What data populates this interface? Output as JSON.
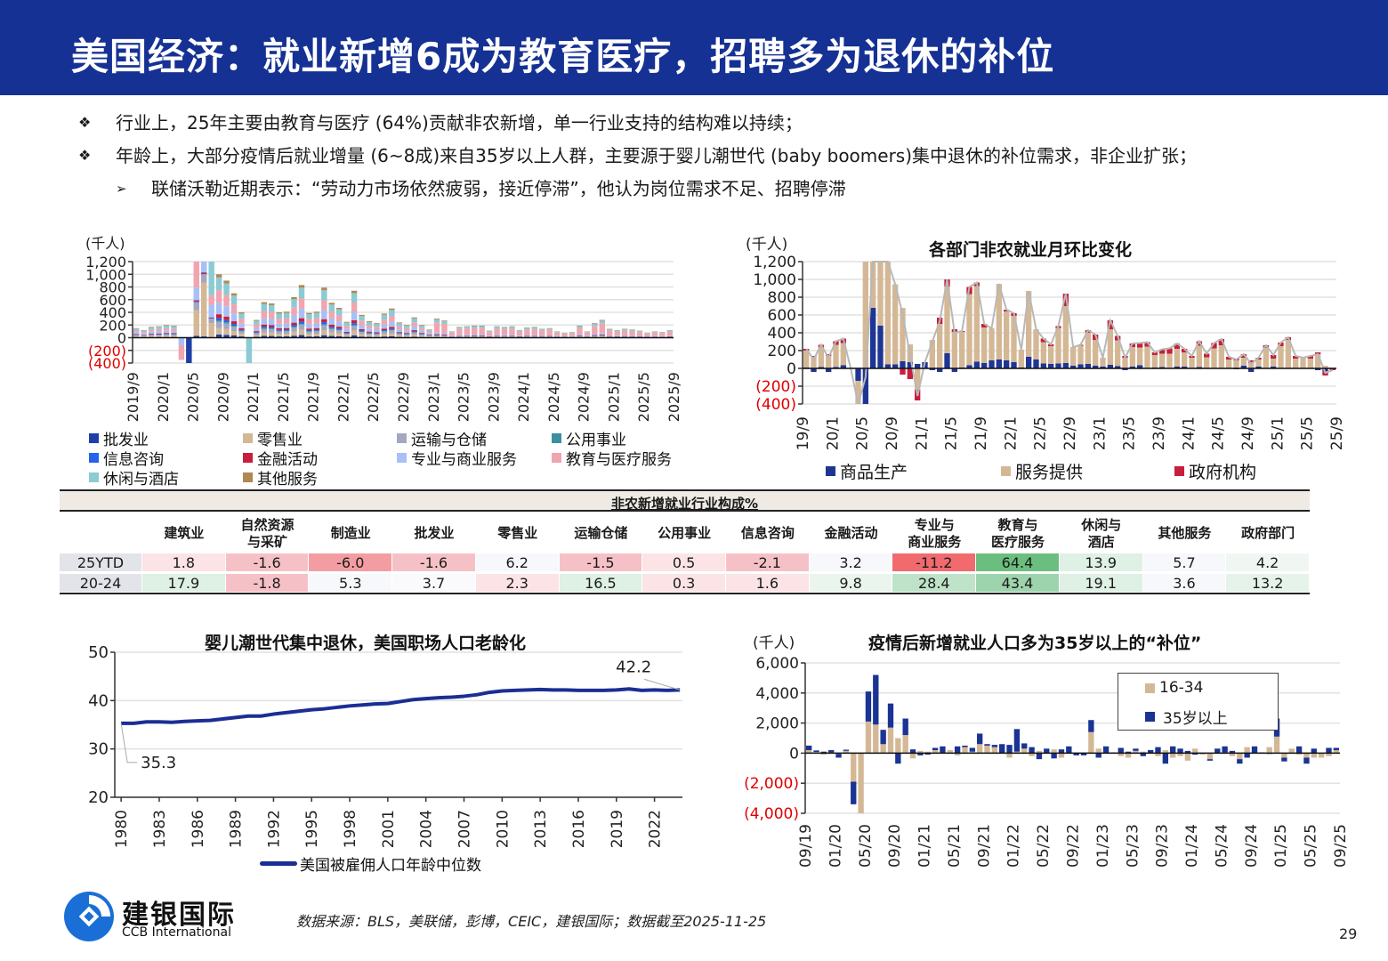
{
  "header": {
    "title": "美国经济：就业新增6成为教育医疗，招聘多为退休的补位"
  },
  "bullets": [
    {
      "marker": "❖",
      "text": "行业上，25年主要由教育与医疗 (64%)贡献非农新增，单一行业支持的结构难以持续；"
    },
    {
      "marker": "❖",
      "text": "年龄上，大部分疫情后就业增量 (6~8成)来自35岁以上人群，主要源于婴儿潮世代 (baby boomers)集中退休的补位需求，非企业扩张；"
    },
    {
      "marker": "➢",
      "text": "联储沃勒近期表示：“劳动力市场依然疲弱，接近停滞”，他认为岗位需求不足、招聘停滞"
    }
  ],
  "chart_data": [
    {
      "id": "sector_stacked",
      "type": "bar",
      "stacked": true,
      "title": "",
      "unit_label": "(千人)",
      "ylim": [
        -400,
        1200
      ],
      "yticks": [
        -400,
        -200,
        0,
        200,
        400,
        600,
        800,
        1000,
        1200
      ],
      "ytick_labels": [
        "(400)",
        "(200)",
        "0",
        "200",
        "400",
        "600",
        "800",
        "1,000",
        "1,200"
      ],
      "xtick_labels": [
        "2019/9",
        "2020/1",
        "2020/5",
        "2020/9",
        "2021/1",
        "2021/5",
        "2021/9",
        "2022/1",
        "2022/5",
        "2022/9",
        "2023/1",
        "2023/5",
        "2023/9",
        "2024/1",
        "2024/5",
        "2024/9",
        "2025/1",
        "2025/5",
        "2025/9"
      ],
      "grid": true,
      "legend_position": "bottom",
      "series_names": [
        "批发业",
        "零售业",
        "运输与仓储",
        "公用事业",
        "信息咨询",
        "金融活动",
        "专业与商业服务",
        "教育与医疗服务",
        "休闲与酒店",
        "其他服务"
      ],
      "series_colors": [
        "#1f3fa8",
        "#d4b896",
        "#a3a8c0",
        "#3a8fa0",
        "#2563eb",
        "#c81e3c",
        "#a8c0f5",
        "#f0a5b0",
        "#8ccad4",
        "#b08850"
      ],
      "totals_approx": [
        150,
        120,
        170,
        180,
        200,
        190,
        -20,
        -850,
        2700,
        4800,
        1400,
        1000,
        900,
        700,
        400,
        220,
        280,
        560,
        540,
        400,
        410,
        640,
        830,
        390,
        410,
        790,
        550,
        470,
        250,
        740,
        360,
        260,
        230,
        380,
        460,
        240,
        200,
        320,
        200,
        130,
        300,
        270,
        100,
        170,
        180,
        190,
        190,
        110,
        180,
        170,
        180,
        120,
        160,
        170,
        140,
        150,
        100,
        80,
        90,
        190,
        100,
        230,
        280,
        140,
        120,
        140,
        130,
        110,
        80,
        100,
        90,
        120
      ],
      "unit": "千人"
    },
    {
      "id": "sector_monthly",
      "type": "bar",
      "stacked": true,
      "title": "各部门非农就业月环比变化",
      "unit_label": "(千人)",
      "ylim": [
        -400,
        1200
      ],
      "yticks": [
        -400,
        -200,
        0,
        200,
        400,
        600,
        800,
        1000,
        1200
      ],
      "ytick_labels": [
        "(400)",
        "(200)",
        "0",
        "200",
        "400",
        "600",
        "800",
        "1,000",
        "1,200"
      ],
      "xtick_labels": [
        "19/9",
        "20/1",
        "20/5",
        "20/9",
        "21/1",
        "21/5",
        "21/9",
        "22/1",
        "22/5",
        "22/9",
        "23/1",
        "23/5",
        "23/9",
        "24/1",
        "24/5",
        "24/9",
        "25/1",
        "25/5",
        "25/9"
      ],
      "grid": true,
      "legend_position": "bottom",
      "series": [
        {
          "name": "商品生产",
          "color": "#1f3594",
          "values": [
            10,
            -40,
            15,
            -40,
            15,
            35,
            0,
            -140,
            -700,
            680,
            480,
            45,
            45,
            80,
            70,
            50,
            70,
            -20,
            -40,
            170,
            -40,
            10,
            35,
            75,
            60,
            90,
            100,
            90,
            70,
            10,
            130,
            100,
            55,
            50,
            55,
            60,
            30,
            45,
            50,
            30,
            20,
            40,
            25,
            -20,
            20,
            35,
            5,
            10,
            15,
            5,
            20,
            20,
            0,
            15,
            5,
            5,
            0,
            0,
            -10,
            30,
            -40,
            20,
            0,
            20,
            0,
            0,
            0,
            0,
            0,
            -20,
            -30,
            0
          ]
        },
        {
          "name": "服务提供",
          "color": "#d4b896",
          "values": [
            190,
            130,
            220,
            140,
            250,
            250,
            0,
            -700,
            1500,
            2100,
            1800,
            1800,
            900,
            600,
            200,
            -240,
            0,
            320,
            500,
            750,
            410,
            400,
            800,
            850,
            400,
            360,
            850,
            550,
            520,
            200,
            740,
            340,
            240,
            200,
            400,
            640,
            210,
            210,
            350,
            290,
            100,
            400,
            290,
            120,
            220,
            200,
            240,
            140,
            150,
            160,
            200,
            160,
            120,
            240,
            120,
            220,
            260,
            100,
            90,
            90,
            60,
            80,
            230,
            90,
            250,
            320,
            110,
            120,
            110,
            160,
            30,
            0,
            80,
            20,
            120
          ]
        },
        {
          "name": "政府机构",
          "color": "#c81e3c",
          "values": [
            20,
            10,
            30,
            20,
            40,
            50,
            0,
            -100,
            -900,
            0,
            0,
            0,
            0,
            -70,
            -120,
            -120,
            0,
            0,
            70,
            80,
            30,
            10,
            80,
            40,
            40,
            0,
            0,
            20,
            30,
            0,
            0,
            0,
            40,
            20,
            20,
            140,
            0,
            10,
            30,
            60,
            0,
            100,
            50,
            20,
            40,
            50,
            50,
            30,
            50,
            60,
            60,
            40,
            20,
            50,
            40,
            60,
            70,
            30,
            20,
            40,
            30,
            20,
            30,
            40,
            40,
            30,
            30,
            0,
            30,
            20,
            -50,
            -20,
            20,
            -30,
            20
          ]
        }
      ],
      "unit": "千人"
    },
    {
      "id": "median_age",
      "type": "line",
      "title": "婴儿潮世代集中退休，美国职场人口老龄化",
      "ylim": [
        20,
        50
      ],
      "yticks": [
        20,
        30,
        40,
        50
      ],
      "xtick_labels": [
        "1980",
        "1983",
        "1986",
        "1989",
        "1992",
        "1995",
        "1998",
        "2001",
        "2004",
        "2007",
        "2010",
        "2013",
        "2016",
        "2019",
        "2022"
      ],
      "grid": true,
      "legend_position": "bottom",
      "series": [
        {
          "name": "美国被雇佣人口年龄中位数",
          "color": "#1a2e94",
          "x": [
            1980,
            1981,
            1982,
            1983,
            1984,
            1985,
            1986,
            1987,
            1988,
            1989,
            1990,
            1991,
            1992,
            1993,
            1994,
            1995,
            1996,
            1997,
            1998,
            1999,
            2000,
            2001,
            2002,
            2003,
            2004,
            2005,
            2006,
            2007,
            2008,
            2009,
            2010,
            2011,
            2012,
            2013,
            2014,
            2015,
            2016,
            2017,
            2018,
            2019,
            2020,
            2021,
            2022,
            2023,
            2024
          ],
          "values": [
            35.3,
            35.3,
            35.6,
            35.6,
            35.5,
            35.7,
            35.8,
            35.9,
            36.2,
            36.5,
            36.8,
            36.8,
            37.2,
            37.5,
            37.8,
            38.1,
            38.3,
            38.6,
            38.9,
            39.1,
            39.3,
            39.4,
            39.8,
            40.2,
            40.4,
            40.6,
            40.7,
            40.9,
            41.2,
            41.7,
            42.0,
            42.1,
            42.2,
            42.3,
            42.2,
            42.2,
            42.1,
            42.1,
            42.1,
            42.2,
            42.4,
            42.1,
            42.2,
            42.1,
            42.2
          ]
        }
      ],
      "annotations": [
        {
          "label": "35.3",
          "x": 1980,
          "y": 35.3
        },
        {
          "label": "42.2",
          "x": 2024,
          "y": 42.2
        }
      ]
    },
    {
      "id": "age_groups",
      "type": "bar",
      "stacked": true,
      "title": "疫情后新增就业人口多为35岁以上的“补位”",
      "unit_label": "(千人)",
      "ylim": [
        -4000,
        6000
      ],
      "yticks": [
        -4000,
        -2000,
        0,
        2000,
        4000,
        6000
      ],
      "ytick_labels": [
        "(4,000)",
        "(2,000)",
        "0",
        "2,000",
        "4,000",
        "6,000"
      ],
      "xtick_labels": [
        "09/19",
        "01/20",
        "05/20",
        "09/20",
        "01/21",
        "05/21",
        "09/21",
        "01/22",
        "05/22",
        "09/22",
        "01/23",
        "05/23",
        "09/23",
        "01/24",
        "05/24",
        "09/24",
        "01/25",
        "05/25",
        "09/25"
      ],
      "grid": true,
      "legend_position": "inside-top-right",
      "series": [
        {
          "name": "16-34",
          "color": "#d4b896",
          "values": [
            200,
            80,
            -100,
            50,
            -50,
            150,
            -1900,
            -4100,
            2100,
            1900,
            600,
            1700,
            1000,
            1200,
            -350,
            150,
            100,
            200,
            0,
            200,
            -150,
            400,
            100,
            600,
            500,
            400,
            0,
            -300,
            100,
            300,
            -200,
            150,
            0,
            250,
            -300,
            0,
            0,
            0,
            1400,
            300,
            0,
            0,
            -200,
            -300,
            150,
            100,
            0,
            -200,
            200,
            -300,
            -200,
            -500,
            300,
            -100,
            -400,
            0,
            50,
            -200,
            -400,
            400,
            0,
            0,
            400,
            1100,
            -300,
            300,
            -100,
            -300,
            -300,
            -300,
            -200,
            200
          ]
        },
        {
          "name": "35岁以上",
          "color": "#1a3494",
          "values": [
            300,
            100,
            100,
            150,
            -250,
            80,
            -1500,
            0,
            2000,
            3300,
            950,
            1600,
            -700,
            1100,
            250,
            -150,
            -100,
            150,
            450,
            0,
            450,
            100,
            250,
            700,
            100,
            150,
            600,
            550,
            1500,
            350,
            400,
            -400,
            300,
            -350,
            250,
            450,
            -150,
            -150,
            800,
            -300,
            450,
            50,
            350,
            100,
            150,
            -200,
            200,
            400,
            -700,
            450,
            300,
            150,
            -100,
            0,
            -100,
            300,
            400,
            150,
            -300,
            -300,
            450,
            50,
            -50,
            1200,
            -250,
            0,
            450,
            -400,
            300,
            0,
            350,
            150
          ]
        }
      ],
      "legend_entries": [
        "16-34",
        "35岁以上"
      ],
      "unit": "千人"
    }
  ],
  "charts": {
    "left_top": {
      "unit_label": "(千人)",
      "legend": [
        "批发业",
        "零售业",
        "运输与仓储",
        "公用事业",
        "信息咨询",
        "金融活动",
        "专业与商业服务",
        "教育与医疗服务",
        "休闲与酒店",
        "其他服务"
      ]
    },
    "right_top": {
      "unit_label": "(千人)",
      "title": "各部门非农就业月环比变化",
      "legend": [
        "商品生产",
        "服务提供",
        "政府机构"
      ]
    },
    "left_bottom": {
      "title": "婴儿潮世代集中退休，美国职场人口老龄化",
      "legend": "美国被雇佣人口年龄中位数",
      "label_start": "35.3",
      "label_end": "42.2"
    },
    "right_bottom": {
      "unit_label": "(千人)",
      "title": "疫情后新增就业人口多为35岁以上的“补位”",
      "legend": [
        "16-34",
        "35岁以上"
      ]
    }
  },
  "table": {
    "caption": "非农新增就业行业构成%",
    "columns": [
      "建筑业",
      "自然资源\n与采矿",
      "制造业",
      "批发业",
      "零售业",
      "运输仓储",
      "公用事业",
      "信息咨询",
      "金融活动",
      "专业与\n商业服务",
      "教育与\n医疗服务",
      "休闲与\n酒店",
      "其他服务",
      "政府部门"
    ],
    "rows": [
      {
        "label": "25YTD",
        "values": [
          "1.8",
          "-1.6",
          "-6.0",
          "-1.6",
          "6.2",
          "-1.5",
          "0.5",
          "-2.1",
          "3.2",
          "-11.2",
          "64.4",
          "13.9",
          "5.7",
          "4.2"
        ],
        "colors": [
          "#fbe3e6",
          "#f6c1c6",
          "#f39da2",
          "#f6c1c6",
          "#f7f8fb",
          "#f6c1c6",
          "#fbe3e6",
          "#f6c1c6",
          "#f7f8fb",
          "#f06a6e",
          "#6abf7e",
          "#dff0e4",
          "#f7f8fb",
          "#f0f7f2"
        ]
      },
      {
        "label": "20-24",
        "values": [
          "17.9",
          "-1.8",
          "5.3",
          "3.7",
          "2.3",
          "16.5",
          "0.3",
          "1.6",
          "9.8",
          "28.4",
          "43.4",
          "19.1",
          "3.6",
          "13.2"
        ],
        "colors": [
          "#dff0e4",
          "#f6c1c6",
          "#f7f8fb",
          "#fafafd",
          "#fbe3e6",
          "#dff0e4",
          "#fbe3e6",
          "#fbe3e6",
          "#eaf5ee",
          "#bfe3c9",
          "#9dd3ad",
          "#dff0e4",
          "#f7f8fb",
          "#e6f3ea"
        ]
      }
    ],
    "row_label_bg": "#e3e3ea"
  },
  "footer": {
    "logo_cn": "建银国际",
    "logo_en": "CCB International",
    "source": "数据来源：BLS，美联储，彭博，CEIC，建银国际；数据截至2025-11-25",
    "page": "29"
  }
}
